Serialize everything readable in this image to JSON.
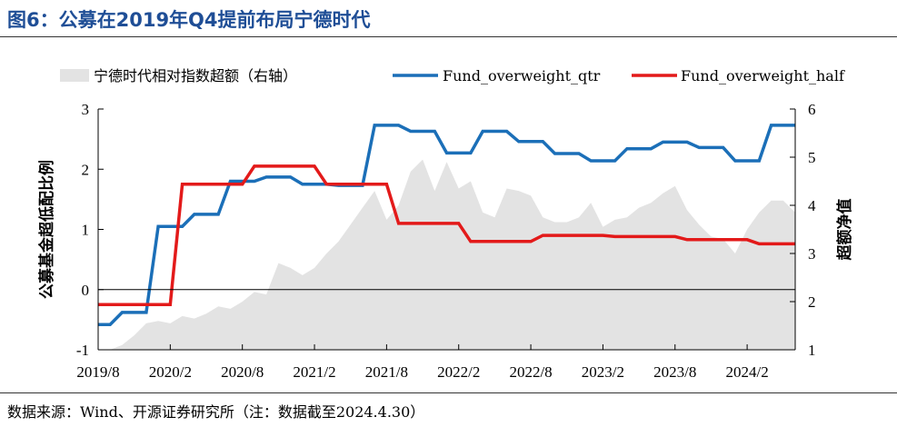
{
  "figure": {
    "title": "图6：公募在2019年Q4提前布局宁德时代",
    "source": "数据来源：Wind、开源证券研究所（注：数据截至2024.4.30）"
  },
  "chart_data": {
    "type": "line",
    "x_range": [
      "2019-08",
      "2024-06"
    ],
    "x_ticks": [
      "2019/8",
      "2020/2",
      "2020/8",
      "2021/2",
      "2021/8",
      "2022/2",
      "2022/8",
      "2023/2",
      "2023/8",
      "2024/2"
    ],
    "y_left": {
      "label": "公募基金超低配比例",
      "range": [
        -1,
        3
      ],
      "ticks": [
        "-1",
        "0",
        "1",
        "2",
        "3"
      ]
    },
    "y_right": {
      "label": "超额净值",
      "range": [
        1,
        6
      ],
      "ticks": [
        "1",
        "2",
        "3",
        "4",
        "5",
        "6"
      ]
    },
    "colors": {
      "area": "#e3e3e3",
      "qtr": "#1b6fb8",
      "half": "#e31a1a"
    },
    "legend": [
      "宁德时代相对指数超额（右轴）",
      "Fund_overweight_qtr",
      "Fund_overweight_half"
    ],
    "series": [
      {
        "name": "宁德时代相对指数超额（右轴）",
        "kind": "area",
        "axis": "right",
        "points": [
          [
            "2019-08",
            1.0
          ],
          [
            "2019-09",
            1.0
          ],
          [
            "2019-10",
            1.1
          ],
          [
            "2019-11",
            1.3
          ],
          [
            "2019-12",
            1.55
          ],
          [
            "2020-01",
            1.6
          ],
          [
            "2020-02",
            1.55
          ],
          [
            "2020-03",
            1.7
          ],
          [
            "2020-04",
            1.65
          ],
          [
            "2020-05",
            1.75
          ],
          [
            "2020-06",
            1.9
          ],
          [
            "2020-07",
            1.85
          ],
          [
            "2020-08",
            2.0
          ],
          [
            "2020-09",
            2.2
          ],
          [
            "2020-10",
            2.15
          ],
          [
            "2020-11",
            2.8
          ],
          [
            "2020-12",
            2.7
          ],
          [
            "2021-01",
            2.55
          ],
          [
            "2021-02",
            2.7
          ],
          [
            "2021-03",
            3.0
          ],
          [
            "2021-04",
            3.25
          ],
          [
            "2021-05",
            3.6
          ],
          [
            "2021-06",
            3.95
          ],
          [
            "2021-07",
            4.3
          ],
          [
            "2021-08",
            3.7
          ],
          [
            "2021-09",
            4.0
          ],
          [
            "2021-10",
            4.7
          ],
          [
            "2021-11",
            4.95
          ],
          [
            "2021-12",
            4.3
          ],
          [
            "2022-01",
            4.9
          ],
          [
            "2022-02",
            4.35
          ],
          [
            "2022-03",
            4.5
          ],
          [
            "2022-04",
            3.85
          ],
          [
            "2022-05",
            3.75
          ],
          [
            "2022-06",
            4.35
          ],
          [
            "2022-07",
            4.3
          ],
          [
            "2022-08",
            4.2
          ],
          [
            "2022-09",
            3.75
          ],
          [
            "2022-10",
            3.65
          ],
          [
            "2022-11",
            3.65
          ],
          [
            "2022-12",
            3.75
          ],
          [
            "2023-01",
            4.05
          ],
          [
            "2023-02",
            3.55
          ],
          [
            "2023-03",
            3.7
          ],
          [
            "2023-04",
            3.75
          ],
          [
            "2023-05",
            3.95
          ],
          [
            "2023-06",
            4.05
          ],
          [
            "2023-07",
            4.25
          ],
          [
            "2023-08",
            4.4
          ],
          [
            "2023-09",
            3.9
          ],
          [
            "2023-10",
            3.6
          ],
          [
            "2023-11",
            3.35
          ],
          [
            "2023-12",
            3.3
          ],
          [
            "2024-01",
            3.0
          ],
          [
            "2024-02",
            3.5
          ],
          [
            "2024-03",
            3.85
          ],
          [
            "2024-04",
            4.1
          ],
          [
            "2024-05",
            4.1
          ],
          [
            "2024-06",
            3.85
          ]
        ]
      },
      {
        "name": "Fund_overweight_qtr",
        "kind": "line",
        "axis": "left",
        "points": [
          [
            "2019-08",
            -0.58
          ],
          [
            "2019-09",
            -0.58
          ],
          [
            "2019-10",
            -0.38
          ],
          [
            "2019-12",
            -0.38
          ],
          [
            "2020-01",
            1.05
          ],
          [
            "2020-03",
            1.05
          ],
          [
            "2020-04",
            1.25
          ],
          [
            "2020-06",
            1.25
          ],
          [
            "2020-07",
            1.8
          ],
          [
            "2020-09",
            1.8
          ],
          [
            "2020-10",
            1.87
          ],
          [
            "2020-12",
            1.87
          ],
          [
            "2021-01",
            1.75
          ],
          [
            "2021-03",
            1.75
          ],
          [
            "2021-04",
            1.73
          ],
          [
            "2021-06",
            1.73
          ],
          [
            "2021-07",
            2.73
          ],
          [
            "2021-09",
            2.73
          ],
          [
            "2021-10",
            2.63
          ],
          [
            "2021-12",
            2.63
          ],
          [
            "2022-01",
            2.27
          ],
          [
            "2022-03",
            2.27
          ],
          [
            "2022-04",
            2.63
          ],
          [
            "2022-06",
            2.63
          ],
          [
            "2022-07",
            2.46
          ],
          [
            "2022-09",
            2.46
          ],
          [
            "2022-10",
            2.26
          ],
          [
            "2022-12",
            2.26
          ],
          [
            "2023-01",
            2.14
          ],
          [
            "2023-03",
            2.14
          ],
          [
            "2023-04",
            2.34
          ],
          [
            "2023-06",
            2.34
          ],
          [
            "2023-07",
            2.45
          ],
          [
            "2023-09",
            2.45
          ],
          [
            "2023-10",
            2.36
          ],
          [
            "2023-12",
            2.36
          ],
          [
            "2024-01",
            2.14
          ],
          [
            "2024-03",
            2.14
          ],
          [
            "2024-04",
            2.73
          ],
          [
            "2024-06",
            2.73
          ]
        ]
      },
      {
        "name": "Fund_overweight_half",
        "kind": "line",
        "axis": "left",
        "points": [
          [
            "2019-08",
            -0.25
          ],
          [
            "2020-02",
            -0.25
          ],
          [
            "2020-03",
            1.75
          ],
          [
            "2020-08",
            1.75
          ],
          [
            "2020-09",
            2.05
          ],
          [
            "2021-02",
            2.05
          ],
          [
            "2021-03",
            1.75
          ],
          [
            "2021-08",
            1.75
          ],
          [
            "2021-09",
            1.1
          ],
          [
            "2022-02",
            1.1
          ],
          [
            "2022-03",
            0.8
          ],
          [
            "2022-08",
            0.8
          ],
          [
            "2022-09",
            0.9
          ],
          [
            "2023-02",
            0.9
          ],
          [
            "2023-03",
            0.88
          ],
          [
            "2023-08",
            0.88
          ],
          [
            "2023-09",
            0.83
          ],
          [
            "2024-02",
            0.83
          ],
          [
            "2024-03",
            0.76
          ],
          [
            "2024-06",
            0.76
          ]
        ]
      }
    ]
  }
}
